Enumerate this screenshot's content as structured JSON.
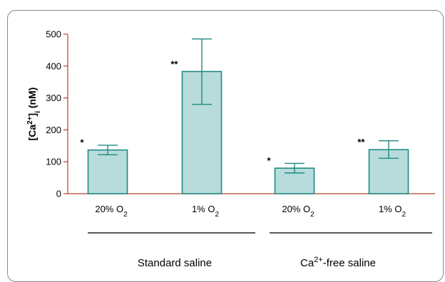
{
  "chart_data": {
    "type": "bar",
    "ylabel": {
      "pre": "[Ca",
      "sup": "2+",
      "post": "]",
      "sub": "i",
      "unit": " (nM)"
    },
    "ylim": [
      0,
      500
    ],
    "yticks": [
      "0",
      "100",
      "200",
      "300",
      "400",
      "500"
    ],
    "grid": false,
    "categories": [
      {
        "main": "20% O",
        "sub": "2"
      },
      {
        "main": "1% O",
        "sub": "2"
      },
      {
        "main": "20% O",
        "sub": "2"
      },
      {
        "main": "1% O",
        "sub": "2"
      }
    ],
    "values": [
      137,
      383,
      80,
      138
    ],
    "error_upper": [
      152,
      485,
      95,
      166
    ],
    "error_lower": [
      122,
      280,
      65,
      111
    ],
    "significance": [
      "*",
      "**",
      "*",
      "**"
    ],
    "groups": [
      {
        "pre": "Standard saline",
        "sup": "",
        "post": ""
      },
      {
        "pre": "Ca",
        "sup": "2+",
        "post": "-free saline"
      }
    ],
    "colors": {
      "bar_fill": "#b7dcdb",
      "bar_stroke": "#1f8a82",
      "axis": "#b1452b",
      "group_line": "#222222"
    }
  }
}
